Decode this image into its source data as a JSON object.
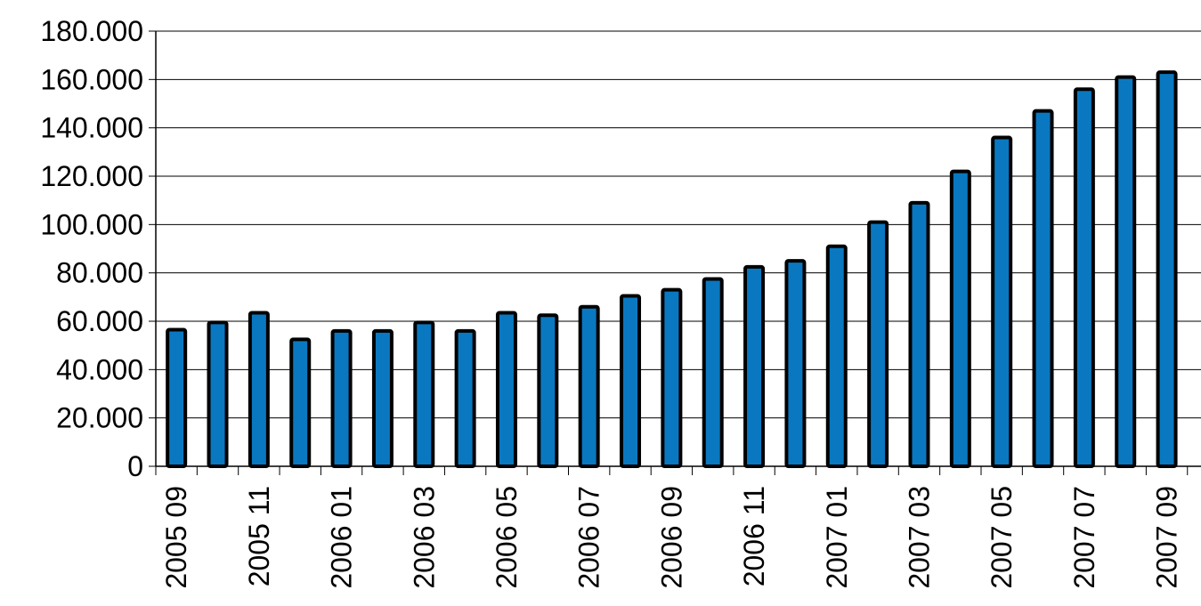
{
  "chart_data": {
    "type": "bar",
    "title": "",
    "xlabel": "",
    "ylabel": "",
    "ylim": [
      0,
      180000
    ],
    "yticks": [
      0,
      20000,
      40000,
      60000,
      80000,
      100000,
      120000,
      140000,
      160000,
      180000
    ],
    "ytick_labels": [
      "0",
      "20.000",
      "40.000",
      "60.000",
      "80.000",
      "100.000",
      "120.000",
      "140.000",
      "160.000",
      "180.000"
    ],
    "grid": "horizontal",
    "legend": "none",
    "categories": [
      "2005 09",
      "2005 10",
      "2005 11",
      "2005 12",
      "2006 01",
      "2006 02",
      "2006 03",
      "2006 04",
      "2006 05",
      "2006 06",
      "2006 07",
      "2006 08",
      "2006 09",
      "2006 10",
      "2006 11",
      "2006 12",
      "2007 01",
      "2007 02",
      "2007 03",
      "2007 04",
      "2007 05",
      "2007 06",
      "2007 07",
      "2007 08",
      "2007 09"
    ],
    "xtick_labels": [
      "2005 09",
      "",
      "2005 11",
      "",
      "2006 01",
      "",
      "2006 03",
      "",
      "2006 05",
      "",
      "2006 07",
      "",
      "2006 09",
      "",
      "2006 11",
      "",
      "2007 01",
      "",
      "2007 03",
      "",
      "2007 05",
      "",
      "2007 07",
      "",
      "2007 09"
    ],
    "values": [
      56500,
      59500,
      63500,
      52500,
      56000,
      56000,
      59500,
      56000,
      63500,
      62500,
      66000,
      70500,
      73000,
      77500,
      82500,
      85000,
      91000,
      101000,
      109000,
      122000,
      136000,
      147000,
      156000,
      161000,
      163000
    ],
    "colors": {
      "bar_fill": "#0A78C0",
      "bar_stroke": "#000000",
      "gridline": "#000000",
      "background": "#ffffff"
    }
  }
}
